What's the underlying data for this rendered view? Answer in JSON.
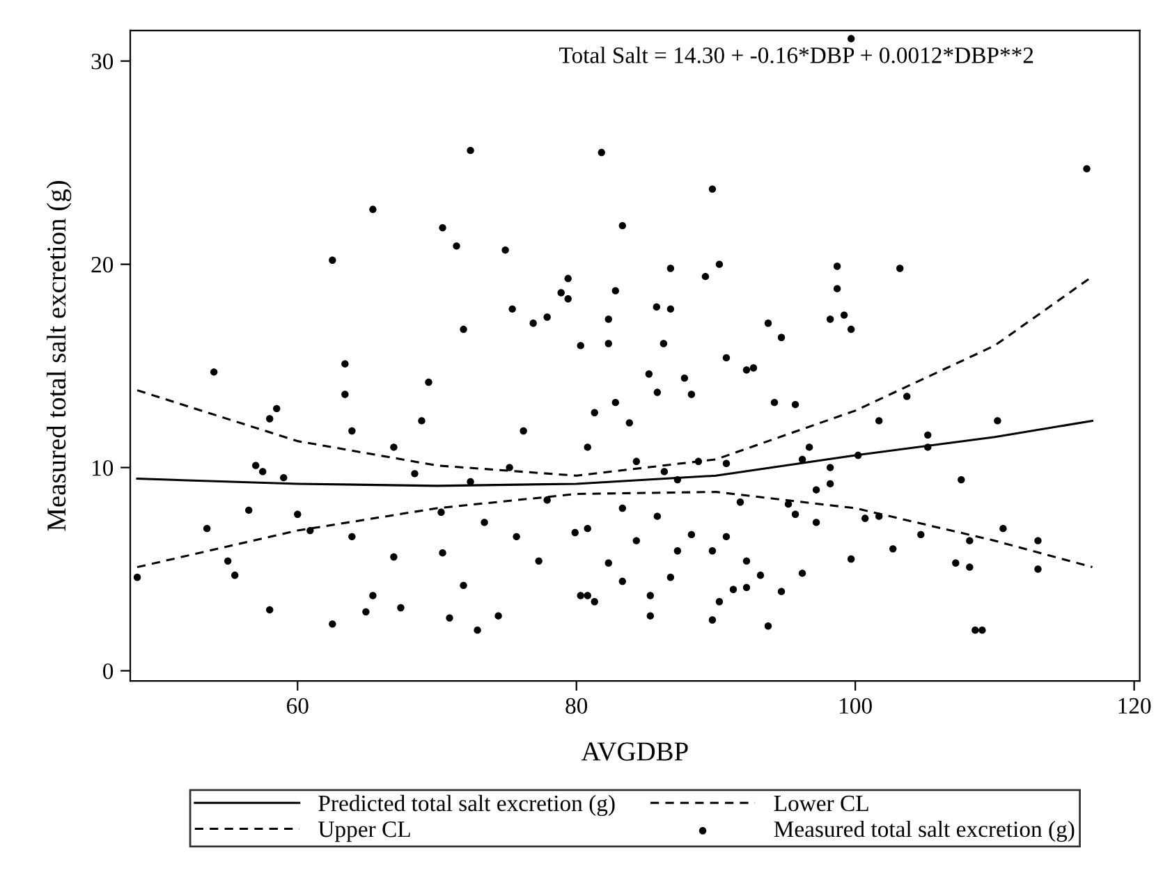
{
  "chart_data": {
    "type": "scatter",
    "xlabel": "AVGDBP",
    "ylabel": "Measured total salt excretion (g)",
    "annotations": [
      "Total Salt = 14.30 + -0.16*DBP + 0.0012*DBP**2"
    ],
    "xlim": [
      48,
      120.4
    ],
    "ylim": [
      -0.5,
      31.5
    ],
    "xticks": [
      60,
      80,
      100,
      120
    ],
    "yticks": [
      0,
      10,
      20,
      30
    ],
    "grid": false,
    "legend": "bottom",
    "series": [
      {
        "name": "Predicted total salt excretion (g)",
        "type": "line",
        "line_style": "solid",
        "color": "#000000",
        "x": [
          48.5,
          60,
          70,
          80,
          90,
          100,
          110,
          117
        ],
        "values": [
          9.45,
          9.2,
          9.1,
          9.2,
          9.6,
          10.6,
          11.5,
          12.3
        ]
      },
      {
        "name": "Lower CL",
        "type": "line",
        "line_style": "dashed",
        "color": "#000000",
        "x": [
          48.5,
          60,
          70,
          80,
          90,
          100,
          110,
          117
        ],
        "values": [
          5.1,
          6.9,
          8.0,
          8.7,
          8.8,
          8.0,
          6.4,
          5.1
        ]
      },
      {
        "name": "Upper CL",
        "type": "line",
        "line_style": "dashed",
        "color": "#000000",
        "x": [
          48.5,
          60,
          70,
          80,
          90,
          100,
          110,
          117
        ],
        "values": [
          13.8,
          11.3,
          10.1,
          9.6,
          10.4,
          12.8,
          16.0,
          19.4
        ]
      },
      {
        "name": "Measured total salt excretion (g)",
        "type": "scatter",
        "marker": "circle",
        "color": "#000000",
        "x": [
          48.5,
          54.0,
          53.5,
          55.0,
          55.5,
          56.5,
          57.0,
          57.5,
          58.0,
          58.5,
          58.0,
          59.0,
          60.0,
          60.9,
          62.5,
          62.5,
          63.4,
          63.4,
          63.9,
          65.4,
          65.4,
          64.9,
          67.4,
          66.9,
          68.9,
          69.4,
          70.4,
          71.4,
          71.9,
          72.4,
          72.9,
          70.9,
          74.4,
          74.9,
          75.4,
          76.9,
          77.9,
          78.9,
          79.4,
          79.4,
          80.8,
          72.4,
          73.4,
          75.7,
          77.3,
          70.4,
          68.4,
          63.9,
          66.9,
          71.9,
          76.2,
          77.9,
          79.9,
          75.2,
          70.3,
          81.8,
          89.75,
          83.3,
          99.7,
          116.6,
          82.8,
          86.75,
          89.25,
          90.25,
          98.7,
          98.7,
          103.2,
          98.2,
          99.2,
          99.7,
          93.75,
          94.7,
          90.75,
          92.2,
          92.7,
          103.7,
          94.2,
          95.7,
          110.2,
          101.7,
          105.2,
          105.2,
          100.2,
          107.6,
          110.6,
          113.1,
          113.1,
          108.2,
          107.2,
          108.2,
          104.7,
          102.7,
          99.7,
          101.7,
          100.7,
          108.6,
          109.1,
          93.75,
          89.75,
          90.25,
          85.3,
          94.7,
          96.2,
          97.2,
          98.2,
          96.7,
          96.2,
          98.2,
          90.75,
          88.75,
          87.25,
          95.2,
          95.7,
          97.2,
          92.2,
          91.25,
          93.2,
          89.75,
          90.75,
          88.25,
          87.25,
          86.75,
          85.3,
          83.3,
          81.3,
          80.3,
          82.3,
          84.3,
          85.8,
          80.8,
          83.3,
          86.3,
          84.3,
          80.8,
          83.8,
          81.3,
          82.8,
          85.8,
          88.25,
          86.25,
          82.3,
          80.3,
          82.3,
          85.75,
          86.75,
          85.2,
          87.75,
          91.75,
          92.2
        ],
        "values": [
          4.6,
          14.7,
          7.0,
          5.4,
          4.7,
          7.9,
          10.1,
          9.8,
          12.4,
          12.9,
          3.0,
          9.5,
          7.7,
          6.9,
          20.2,
          2.3,
          15.1,
          13.6,
          11.8,
          22.7,
          3.7,
          2.9,
          3.1,
          11.0,
          12.3,
          14.2,
          21.8,
          20.9,
          16.8,
          25.6,
          2.0,
          2.6,
          2.7,
          20.7,
          17.8,
          17.1,
          17.4,
          18.6,
          19.3,
          18.3,
          3.7,
          9.3,
          7.3,
          6.6,
          5.4,
          5.8,
          9.7,
          6.6,
          5.6,
          4.2,
          11.8,
          8.4,
          6.8,
          10.0,
          7.8,
          25.5,
          23.7,
          21.9,
          31.1,
          24.7,
          18.7,
          19.8,
          19.4,
          20.0,
          19.9,
          18.8,
          19.8,
          17.3,
          17.5,
          16.8,
          17.1,
          16.4,
          15.4,
          14.8,
          14.9,
          13.5,
          13.2,
          13.1,
          12.3,
          12.3,
          11.6,
          11.0,
          10.6,
          9.4,
          7.0,
          6.4,
          5.0,
          6.4,
          5.3,
          5.1,
          6.7,
          6.0,
          5.5,
          7.6,
          7.5,
          2.0,
          2.0,
          2.2,
          2.5,
          3.4,
          2.7,
          3.9,
          4.8,
          8.9,
          9.2,
          11.0,
          10.4,
          10.0,
          10.2,
          10.3,
          9.4,
          8.2,
          7.7,
          7.3,
          4.1,
          4.0,
          4.7,
          5.9,
          6.6,
          6.7,
          5.9,
          4.6,
          3.7,
          4.4,
          3.4,
          3.7,
          5.3,
          6.4,
          7.6,
          7.0,
          8.0,
          9.8,
          10.3,
          11.0,
          12.2,
          12.7,
          13.2,
          13.7,
          13.6,
          16.1,
          16.1,
          16.0,
          17.3,
          17.9,
          17.8,
          14.6,
          14.4,
          8.3,
          5.4
        ]
      }
    ]
  }
}
